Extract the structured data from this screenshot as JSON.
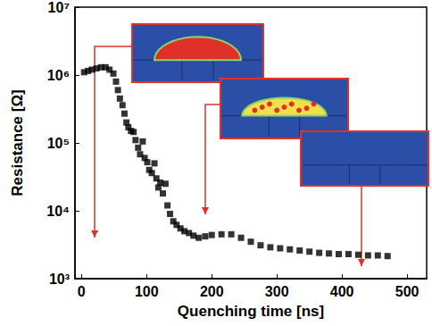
{
  "chart_data": {
    "type": "scatter",
    "x_label": "Quenching time [ns]",
    "y_label": "Resistance [Ω]",
    "x": [
      4,
      10,
      16,
      23,
      30,
      37,
      43,
      49,
      53,
      56,
      59,
      63,
      66,
      69,
      72,
      76,
      80,
      83,
      87,
      90,
      94,
      97,
      101,
      104,
      108,
      112,
      115,
      118,
      121,
      125,
      129,
      132,
      136,
      141,
      146,
      152,
      158,
      165,
      172,
      180,
      190,
      200,
      215,
      230,
      245,
      260,
      275,
      290,
      305,
      320,
      335,
      350,
      365,
      380,
      395,
      410,
      425,
      440,
      455,
      470
    ],
    "values": [
      1100000,
      1150000,
      1200000,
      1250000,
      1300000,
      1300000,
      1200000,
      1050000,
      800000,
      600000,
      450000,
      360000,
      270000,
      200000,
      170000,
      150000,
      145000,
      110000,
      85000,
      68000,
      105000,
      60000,
      52000,
      40000,
      36000,
      50000,
      30000,
      22000,
      26000,
      18000,
      25000,
      12000,
      9000,
      7000,
      6200,
      5500,
      5000,
      4700,
      4300,
      4000,
      4200,
      4400,
      4500,
      4500,
      4000,
      3500,
      3100,
      2900,
      2800,
      2700,
      2600,
      2500,
      2400,
      2350,
      2300,
      2300,
      2250,
      2200,
      2200,
      2150
    ],
    "color": "#000000",
    "marker": "square",
    "log": "y",
    "grid": false,
    "xlim": [
      -10,
      530
    ],
    "xticks": [
      0,
      100,
      200,
      300,
      400,
      500
    ],
    "ylim": [
      1000,
      10000000
    ],
    "yticks": [
      {
        "value": 1000,
        "label": "10³"
      },
      {
        "value": 10000,
        "label": "10⁴"
      },
      {
        "value": 100000,
        "label": "10⁵"
      },
      {
        "value": 1000000,
        "label": "10⁶"
      },
      {
        "value": 10000000,
        "label": "10⁷"
      }
    ]
  }
}
